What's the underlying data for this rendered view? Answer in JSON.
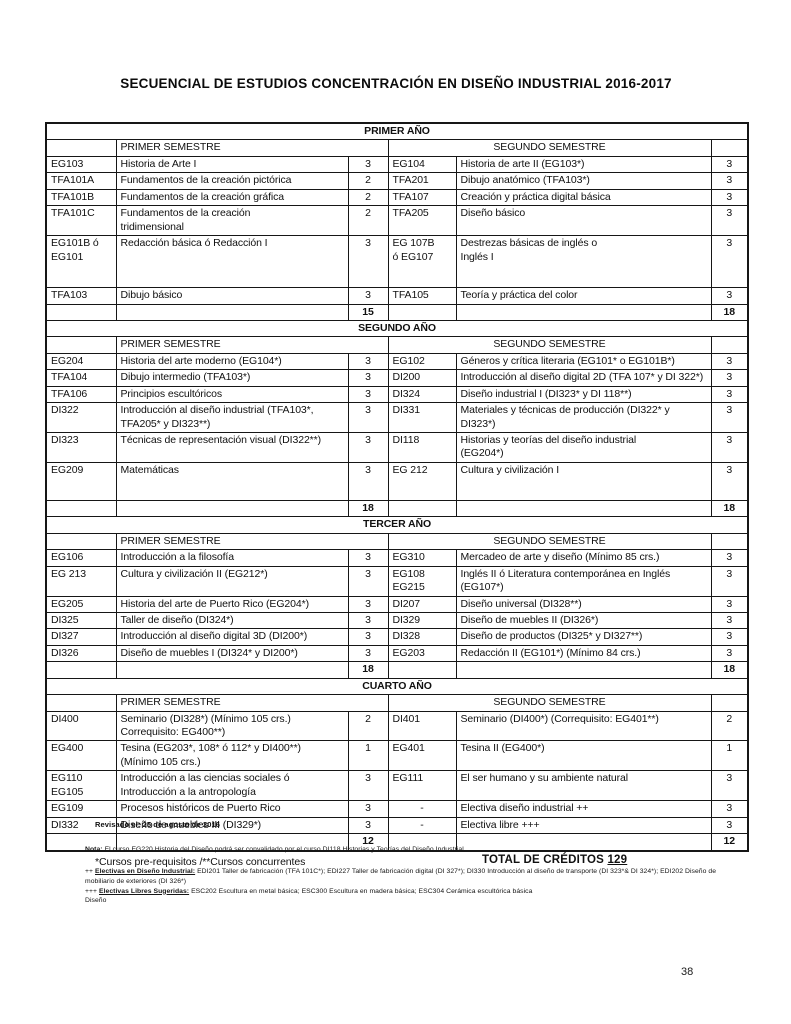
{
  "title": "SECUENCIAL DE ESTUDIOS CONCENTRACIÓN EN DISEÑO INDUSTRIAL 2016-2017",
  "table": {
    "years": [
      {
        "name": "PRIMER AÑO",
        "sem1": "PRIMER SEMESTRE",
        "sem2": "SEGUNDO SEMESTRE",
        "rows": [
          {
            "c1": "EG103",
            "n1": "Historia de Arte I",
            "cr1": "3",
            "c2": "EG104",
            "n2": "Historia de arte II (EG103*)",
            "cr2": "3"
          },
          {
            "c1": "TFA101A",
            "n1": "Fundamentos de la creación pictórica",
            "cr1": "2",
            "c2": "TFA201",
            "n2": "Dibujo anatómico (TFA103*)",
            "cr2": "3"
          },
          {
            "c1": "TFA101B",
            "n1": "Fundamentos de la creación gráfica",
            "cr1": "2",
            "c2": "TFA107",
            "n2": "Creación y práctica digital básica",
            "cr2": "3"
          },
          {
            "c1": "TFA101C",
            "n1": "Fundamentos de la creación\ntridimensional",
            "cr1": "2",
            "c2": "TFA205",
            "n2": "Diseño básico",
            "cr2": "3"
          },
          {
            "c1": "EG101B ó\nEG101",
            "n1": "Redacción básica ó  Redacción I",
            "cr1": "3",
            "c2": "EG 107B\nó EG107",
            "n2": "Destrezas básicas de inglés o\nInglés I",
            "cr2": "3",
            "h": 52
          },
          {
            "c1": "TFA103",
            "n1": "Dibujo básico",
            "cr1": "3",
            "c2": "TFA105",
            "n2": "Teoría y práctica del color",
            "cr2": "3"
          }
        ],
        "total1": "15",
        "total2": "18"
      },
      {
        "name": "SEGUNDO AÑO",
        "sem1": "PRIMER SEMESTRE",
        "sem2": "SEGUNDO SEMESTRE",
        "rows": [
          {
            "c1": "EG204",
            "n1": "Historia del arte moderno (EG104*)",
            "cr1": "3",
            "c2": "EG102",
            "n2": "Géneros y crítica literaria (EG101* o EG101B*)",
            "cr2": "3"
          },
          {
            "c1": "TFA104",
            "n1": "Dibujo intermedio (TFA103*)",
            "cr1": "3",
            "c2": "DI200",
            "n2": "Introducción al diseño digital 2D (TFA 107* y DI 322*)",
            "cr2": "3"
          },
          {
            "c1": "TFA106",
            "n1": "Principios escultóricos",
            "cr1": "3",
            "c2": "DI324",
            "n2": "Diseño industrial I (DI323* y DI 118**)",
            "cr2": "3"
          },
          {
            "c1": "DI322",
            "n1": "Introducción al diseño industrial (TFA103*,\nTFA205* y DI323**)",
            "cr1": "3",
            "c2": "DI331",
            "n2": "Materiales y técnicas de producción (DI322* y\nDI323*)",
            "cr2": "3"
          },
          {
            "c1": "DI323",
            "n1": "Técnicas de representación visual (DI322**)",
            "cr1": "3",
            "c2": "DI118",
            "n2": "Historias y teorías del diseño industrial\n(EG204*)",
            "cr2": "3"
          },
          {
            "c1": "EG209",
            "n1": "Matemáticas",
            "cr1": "3",
            "c2": "EG 212",
            "n2": "Cultura y civilización I",
            "cr2": "3",
            "h": 38
          }
        ],
        "total1": "18",
        "total2": "18"
      },
      {
        "name": "TERCER AÑO",
        "sem1": "PRIMER SEMESTRE",
        "sem2": "SEGUNDO SEMESTRE",
        "rows": [
          {
            "c1": "EG106",
            "n1": "Introducción a la filosofía",
            "cr1": "3",
            "c2": "EG310",
            "n2": "Mercadeo de arte y diseño (Mínimo 85 crs.)",
            "cr2": "3"
          },
          {
            "c1": "EG 213",
            "n1": "Cultura y civilización II (EG212*)",
            "cr1": "3",
            "c2": "EG108\nEG215",
            "n2": "Inglés II ó Literatura contemporánea en Inglés\n(EG107*)",
            "cr2": "3"
          },
          {
            "c1": "EG205",
            "n1": "Historia del arte de Puerto Rico (EG204*)",
            "cr1": "3",
            "c2": "DI207",
            "n2": "Diseño universal (DI328**)",
            "cr2": "3"
          },
          {
            "c1": "DI325",
            "n1": "Taller de diseño (DI324*)",
            "cr1": "3",
            "c2": "DI329",
            "n2": "Diseño de muebles II (DI326*)",
            "cr2": "3"
          },
          {
            "c1": "DI327",
            "n1": "Introducción al diseño digital 3D (DI200*)",
            "cr1": "3",
            "c2": "DI328",
            "n2": "Diseño de productos (DI325* y DI327**)",
            "cr2": "3"
          },
          {
            "c1": "DI326",
            "n1": "Diseño de muebles I  (DI324* y DI200*)",
            "cr1": "3",
            "c2": "EG203",
            "n2": "Redacción II (EG101*) (Mínimo 84 crs.)",
            "cr2": "3"
          }
        ],
        "total1": "18",
        "total2": "18"
      },
      {
        "name": "CUARTO AÑO",
        "sem1": "PRIMER SEMESTRE",
        "sem2": "SEGUNDO SEMESTRE",
        "rows": [
          {
            "c1": "DI400",
            "n1": "Seminario (DI328*) (Mínimo 105 crs.)\nCorrequisito: EG400**)",
            "cr1": "2",
            "c2": "DI401",
            "n2": "Seminario (DI400*) (Correquisito: EG401**)",
            "cr2": "2"
          },
          {
            "c1": "EG400",
            "n1": "Tesina (EG203*, 108* ó 112* y DI400**)\n(Mínimo 105 crs.)",
            "cr1": "1",
            "c2": "EG401",
            "n2": "Tesina II (EG400*)",
            "cr2": "1"
          },
          {
            "c1": "EG110\nEG105",
            "n1": "Introducción a las ciencias sociales ó\nIntroducción a la antropología",
            "cr1": "3",
            "c2": "EG111",
            "n2": "El ser humano y su ambiente natural",
            "cr2": "3"
          },
          {
            "c1": "EG109",
            "n1": "Procesos históricos de Puerto Rico",
            "cr1": "3",
            "c2": "-",
            "n2": "Electiva diseño industrial ++",
            "cr2": "3"
          },
          {
            "c1": "DI332",
            "n1": "Diseño de muebles III (DI329*)",
            "cr1": "3",
            "c2": "-",
            "n2": "Electiva libre +++",
            "cr2": "3"
          }
        ],
        "total1": "12",
        "total2": "12"
      }
    ]
  },
  "footer": {
    "prereq_note": "*Cursos pre-requisitos /**Cursos concurrentes",
    "total_label": "TOTAL DE CRÉDITOS",
    "total_value": "129",
    "revised": "Revisado el: 25 de agosto de 2016",
    "nota_label": "Nota:",
    "nota_text": " El curso EG220 Historia del Diseño podrá ser convalidado por el curso DI118 Historias y Teorías del Diseño Industrial",
    "electivas_di_prefix": "++ ",
    "electivas_di_label": "Electivas en Diseño Industrial:",
    "electivas_di_text": " EDI201 Taller de fabricación (TFA 101C*); EDI227 Taller de fabricación digital (DI 327*);  DI330 Introducción al diseño de transporte (DI 323*& DI 324*); EDI202 Diseño de mobiliario de exteriores (DI 326*)",
    "electivas_libres_prefix": "+++ ",
    "electivas_libres_label": "Electivas Libres Sugeridas:",
    "electivas_libres_text": " ESC202 Escultura en metal básica; ESC300 Escultura en madera básica; ESC304 Cerámica escultórica básica",
    "trailing_word": "Diseño",
    "page_number": "38"
  }
}
